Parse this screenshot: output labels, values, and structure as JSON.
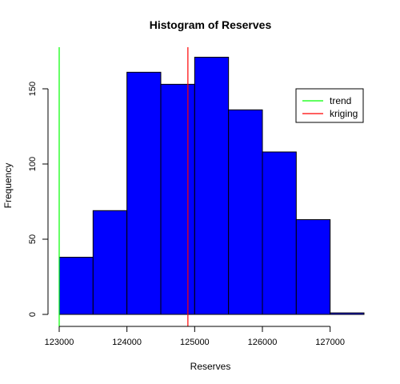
{
  "chart_data": {
    "type": "bar",
    "title": "Histogram of Reserves",
    "xlabel": "Reserves",
    "ylabel": "Frequency",
    "xlim": [
      123000,
      127500
    ],
    "ylim": [
      0,
      180
    ],
    "bins": [
      {
        "start": 123000,
        "end": 123500,
        "count": 38
      },
      {
        "start": 123500,
        "end": 124000,
        "count": 69
      },
      {
        "start": 124000,
        "end": 124500,
        "count": 161
      },
      {
        "start": 124500,
        "end": 125000,
        "count": 153
      },
      {
        "start": 125000,
        "end": 125500,
        "count": 171
      },
      {
        "start": 125500,
        "end": 126000,
        "count": 136
      },
      {
        "start": 126000,
        "end": 126500,
        "count": 108
      },
      {
        "start": 126500,
        "end": 127000,
        "count": 63
      },
      {
        "start": 127000,
        "end": 127500,
        "count": 1
      }
    ],
    "bar_color": "#0000ff",
    "x_ticks": [
      123000,
      124000,
      125000,
      126000,
      127000
    ],
    "x_tick_labels": [
      "123000",
      "124000",
      "125000",
      "126000",
      "127000"
    ],
    "y_ticks": [
      0,
      50,
      100,
      150
    ],
    "y_tick_labels": [
      "0",
      "50",
      "100",
      "150"
    ],
    "vlines": [
      {
        "name": "trend",
        "x": 123000,
        "color": "#00ff00"
      },
      {
        "name": "kriging",
        "x": 124900,
        "color": "#ff0000"
      }
    ],
    "legend": {
      "position": "top-right",
      "entries": [
        {
          "label": "trend",
          "color": "#00ff00"
        },
        {
          "label": "kriging",
          "color": "#ff0000"
        }
      ]
    },
    "grid": false
  }
}
